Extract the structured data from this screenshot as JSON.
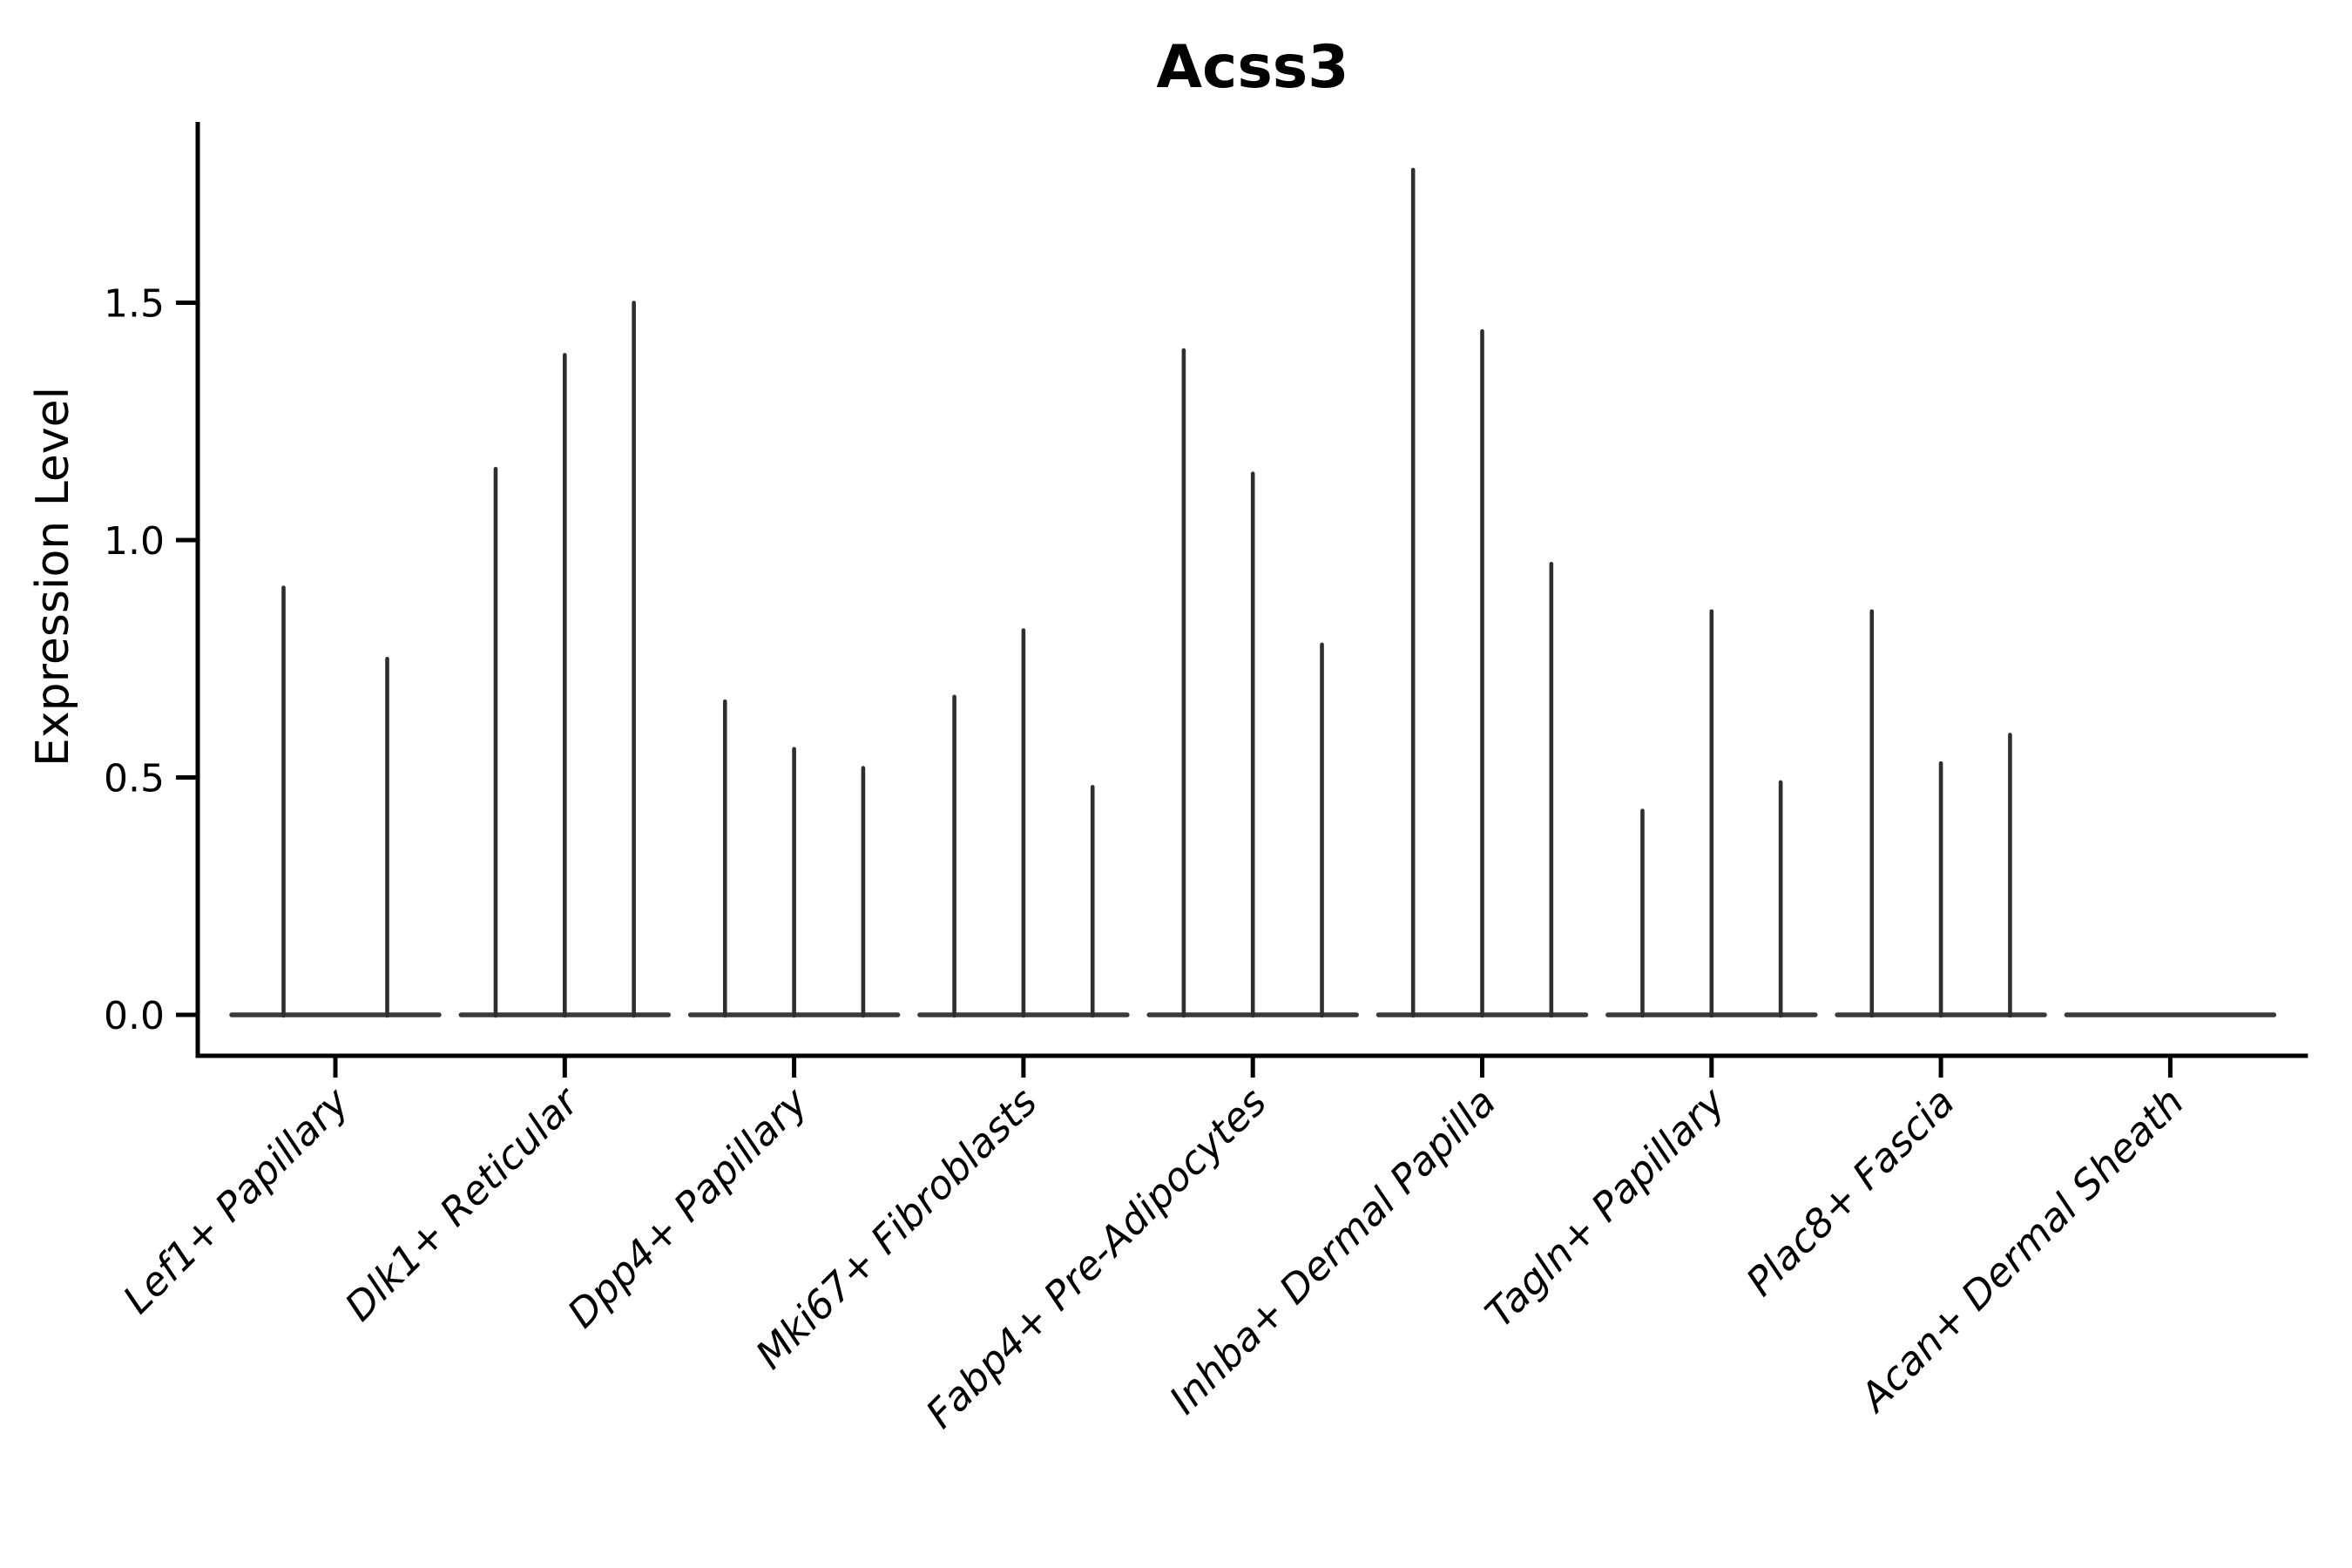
{
  "title": "Acss3",
  "ylabel": "Expression Level",
  "chart_data": {
    "type": "violin",
    "title": "Acss3",
    "xlabel": "",
    "ylabel": "Expression Level",
    "yticks": [
      0.0,
      0.5,
      1.0,
      1.5
    ],
    "ylim": [
      -0.08,
      1.88
    ],
    "grid": false,
    "legend": null,
    "style": "collapsed-violins: each category shows thin vertical density spikes rising from a flat zero line",
    "categories": [
      "Lef1+ Papillary",
      "Dlk1+ Reticular",
      "Dpp4+ Papillary",
      "Mki67+ Fibroblasts",
      "Fabp4+ Pre-Adipocytes",
      "Inhba+ Dermal Papilla",
      "Tagln+ Papillary",
      "Plac8+ Fascia",
      "Acan+ Dermal Sheath"
    ],
    "groups": [
      {
        "category": "Lef1+ Papillary",
        "spike_heights": [
          0.9,
          0.75
        ]
      },
      {
        "category": "Dlk1+ Reticular",
        "spike_heights": [
          1.15,
          1.39,
          1.5
        ]
      },
      {
        "category": "Dpp4+ Papillary",
        "spike_heights": [
          0.66,
          0.56,
          0.52
        ]
      },
      {
        "category": "Mki67+ Fibroblasts",
        "spike_heights": [
          0.67,
          0.81,
          0.48
        ]
      },
      {
        "category": "Fabp4+ Pre-Adipocytes",
        "spike_heights": [
          1.4,
          1.14,
          0.78
        ]
      },
      {
        "category": "Inhba+ Dermal Papilla",
        "spike_heights": [
          1.78,
          1.44,
          0.95
        ]
      },
      {
        "category": "Tagln+ Papillary",
        "spike_heights": [
          0.43,
          0.85,
          0.49
        ]
      },
      {
        "category": "Plac8+ Fascia",
        "spike_heights": [
          0.85,
          0.53,
          0.59
        ]
      },
      {
        "category": "Acan+ Dermal Sheath",
        "spike_heights": [
          0,
          0,
          0
        ]
      }
    ],
    "colors": {
      "violin": "#2e2e2e",
      "zero_line": "#3a3a3a",
      "axis": "#000000",
      "background": "#ffffff"
    }
  }
}
